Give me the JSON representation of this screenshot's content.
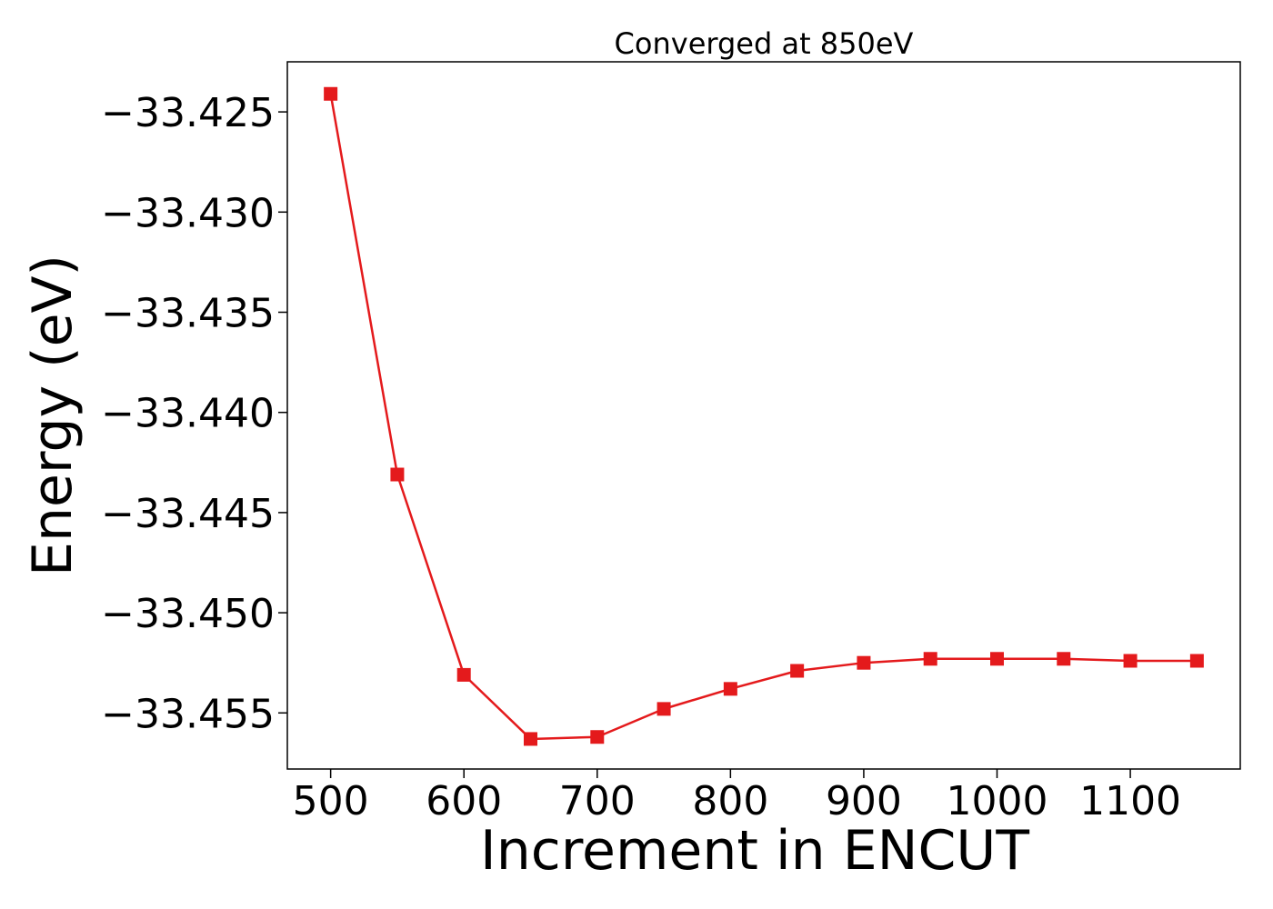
{
  "chart_data": {
    "type": "line",
    "title": "Converged at 850eV",
    "xlabel": "Increment in ENCUT",
    "ylabel": "Energy (eV)",
    "x": [
      500,
      550,
      600,
      650,
      700,
      750,
      800,
      850,
      900,
      950,
      1000,
      1050,
      1100,
      1150
    ],
    "series": [
      {
        "values": [
          -33.4241,
          -33.4431,
          -33.4531,
          -33.4563,
          -33.4562,
          -33.4548,
          -33.4538,
          -33.4529,
          -33.4525,
          -33.4523,
          -33.4523,
          -33.4523,
          -33.4524,
          -33.4524
        ],
        "color": "#e41a1c",
        "marker": "square"
      }
    ],
    "xlim": [
      467.5,
      1182.5
    ],
    "ylim": [
      -33.4578,
      -33.4225
    ],
    "x_ticks": [
      500,
      600,
      700,
      800,
      900,
      1000,
      1100
    ],
    "y_ticks": [
      -33.425,
      -33.43,
      -33.435,
      -33.44,
      -33.445,
      -33.45,
      -33.455
    ],
    "y_tick_labels": [
      "−33.425",
      "−33.430",
      "−33.435",
      "−33.440",
      "−33.445",
      "−33.450",
      "−33.455"
    ],
    "grid": false,
    "legend": false
  }
}
